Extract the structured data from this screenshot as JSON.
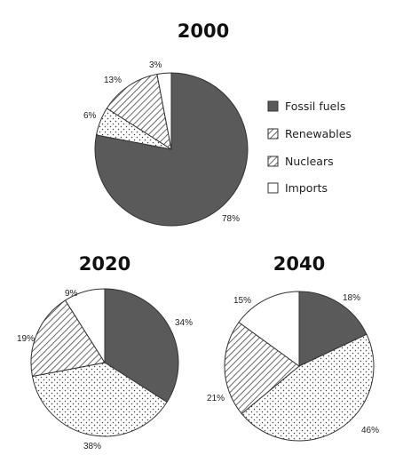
{
  "chart_data": {
    "type": "pie",
    "legend": {
      "placement": "right",
      "entries": [
        {
          "name": "Fossil fuels",
          "pattern": "solid"
        },
        {
          "name": "Renewables",
          "pattern": "hatch"
        },
        {
          "name": "Nuclears",
          "pattern": "hatch"
        },
        {
          "name": "Imports",
          "pattern": "blank"
        }
      ]
    },
    "colors": {
      "fossil": "#5a5a5a",
      "outline": "#333333",
      "background": "#ffffff"
    },
    "charts": [
      {
        "title": "2000",
        "slices": [
          {
            "category": "Fossil fuels",
            "value": 78,
            "label": "78%",
            "pattern": "solid"
          },
          {
            "category": "Renewables",
            "value": 6,
            "label": "6%",
            "pattern": "dots"
          },
          {
            "category": "Nuclears",
            "value": 13,
            "label": "13%",
            "pattern": "hatch"
          },
          {
            "category": "Imports",
            "value": 3,
            "label": "3%",
            "pattern": "blank"
          }
        ]
      },
      {
        "title": "2020",
        "slices": [
          {
            "category": "Fossil fuels",
            "value": 34,
            "label": "34%",
            "pattern": "solid"
          },
          {
            "category": "Renewables",
            "value": 38,
            "label": "38%",
            "pattern": "dots"
          },
          {
            "category": "Nuclears",
            "value": 19,
            "label": "19%",
            "pattern": "hatch"
          },
          {
            "category": "Imports",
            "value": 9,
            "label": "9%",
            "pattern": "blank"
          }
        ]
      },
      {
        "title": "2040",
        "slices": [
          {
            "category": "Fossil fuels",
            "value": 18,
            "label": "18%",
            "pattern": "solid"
          },
          {
            "category": "Renewables",
            "value": 46,
            "label": "46%",
            "pattern": "dots"
          },
          {
            "category": "Nuclears",
            "value": 21,
            "label": "21%",
            "pattern": "hatch"
          },
          {
            "category": "Imports",
            "value": 15,
            "label": "15%",
            "pattern": "blank"
          }
        ]
      }
    ]
  }
}
